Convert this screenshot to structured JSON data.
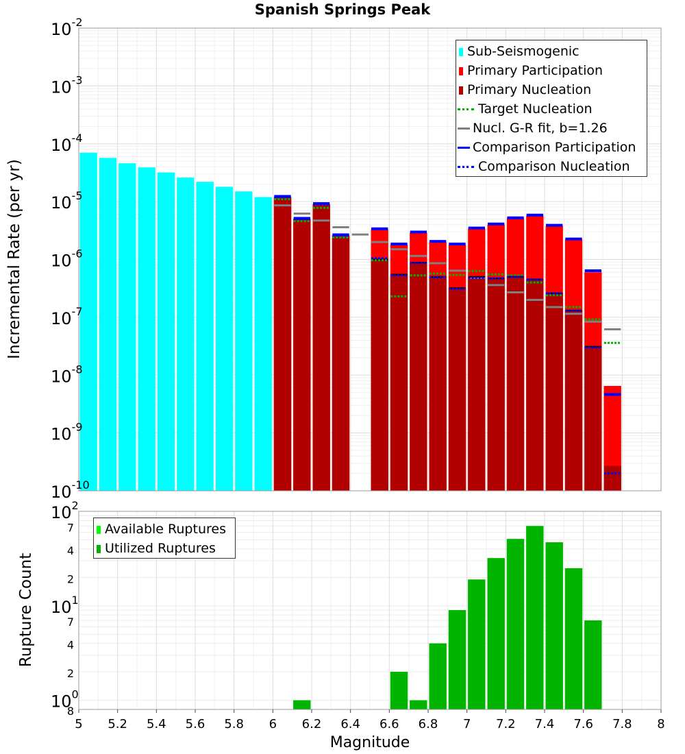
{
  "title": "Spanish Springs Peak",
  "colors": {
    "sub_seismogenic": "#00ffff",
    "primary_participation": "#ff0000",
    "primary_nucleation": "#b00000",
    "target_nucleation": "#00b400",
    "gr_fit": "#808080",
    "comparison": "#0000ff",
    "available": "#00ff00",
    "utilized": "#00b400"
  },
  "top_legend": [
    "Sub-Seismogenic",
    "Primary Participation",
    "Primary Nucleation",
    "Target Nucleation",
    "Nucl. G-R fit, b=1.26",
    "Comparison Participation",
    "Comparison Nucleation"
  ],
  "bottom_legend": [
    "Available Ruptures",
    "Utilized Ruptures"
  ],
  "chart_data": [
    {
      "type": "bar",
      "panel": "top",
      "yscale": "log",
      "ylabel": "Incremental Rate (per yr)",
      "xlim": [
        5,
        8
      ],
      "ylim": [
        1e-10,
        0.01
      ],
      "x_ticks": [
        "5",
        "5.2",
        "5.4",
        "5.6",
        "5.8",
        "6",
        "6.2",
        "6.4",
        "6.6",
        "6.8",
        "7",
        "7.2",
        "7.4",
        "7.6",
        "7.8",
        "8"
      ],
      "y_tick_exponents": [
        "-2",
        "-3",
        "-4",
        "-5",
        "-6",
        "-7",
        "-8",
        "-9",
        "-10"
      ],
      "sub_seismogenic": {
        "x": [
          5.05,
          5.15,
          5.25,
          5.35,
          5.45,
          5.55,
          5.65,
          5.75,
          5.85,
          5.95
        ],
        "values": [
          7e-05,
          5.7e-05,
          4.6e-05,
          3.9e-05,
          3.2e-05,
          2.6e-05,
          2.2e-05,
          1.8e-05,
          1.5e-05,
          1.2e-05
        ]
      },
      "x": [
        6.05,
        6.15,
        6.25,
        6.35,
        6.45,
        6.55,
        6.65,
        6.75,
        6.85,
        6.95,
        7.05,
        7.15,
        7.25,
        7.35,
        7.45,
        7.55,
        7.65,
        7.75
      ],
      "primary_participation": [
        1.2e-05,
        5e-06,
        9e-06,
        2.6e-06,
        null,
        3.3e-06,
        1.8e-06,
        2.9e-06,
        2e-06,
        1.8e-06,
        3.4e-06,
        4e-06,
        5.1e-06,
        5.7e-06,
        3.8e-06,
        2.2e-06,
        6e-07,
        6.5e-09
      ],
      "primary_nucleation": [
        1.2e-05,
        5e-06,
        9e-06,
        2.6e-06,
        null,
        1e-06,
        5.5e-07,
        8.8e-07,
        5e-07,
        3.2e-07,
        5e-07,
        4.7e-07,
        5e-07,
        4.5e-07,
        2.6e-07,
        1.3e-07,
        3.1e-08,
        2.7e-10
      ],
      "target_nucleation": [
        1.1e-05,
        4.6e-06,
        7.8e-06,
        2.4e-06,
        null,
        9.7e-07,
        2.3e-07,
        5.3e-07,
        5.7e-07,
        5.4e-07,
        6.3e-07,
        5.5e-07,
        5.3e-07,
        4e-07,
        2.4e-07,
        1.5e-07,
        9.2e-08,
        3.6e-08
      ],
      "gr_fit": [
        8.6e-06,
        6.2e-06,
        4.7e-06,
        3.6e-06,
        2.7e-06,
        2e-06,
        1.5e-06,
        1.15e-06,
        8.6e-07,
        6.4e-07,
        4.8e-07,
        3.6e-07,
        2.7e-07,
        2e-07,
        1.5e-07,
        1.15e-07,
        8.4e-08,
        6.2e-08
      ],
      "comparison_participation": [
        1.2e-05,
        5e-06,
        9e-06,
        2.6e-06,
        null,
        3.3e-06,
        1.8e-06,
        2.9e-06,
        2e-06,
        1.8e-06,
        3.4e-06,
        4e-06,
        5.1e-06,
        5.7e-06,
        3.8e-06,
        2.2e-06,
        6.2e-07,
        4.5e-09
      ],
      "comparison_nucleation": [
        1.2e-05,
        5e-06,
        9e-06,
        2.6e-06,
        null,
        1.05e-06,
        5.3e-07,
        8.7e-07,
        4.9e-07,
        3.1e-07,
        4.8e-07,
        4.7e-07,
        5e-07,
        4.5e-07,
        2.6e-07,
        1.3e-07,
        3e-08,
        2e-10
      ]
    },
    {
      "type": "bar",
      "panel": "bottom",
      "yscale": "log",
      "ylabel": "Rupture Count",
      "xlabel": "Magnitude",
      "xlim": [
        5,
        8
      ],
      "ylim": [
        0.8,
        100
      ],
      "x_ticks": [
        "5",
        "5.2",
        "5.4",
        "5.6",
        "5.8",
        "6",
        "6.2",
        "6.4",
        "6.6",
        "6.8",
        "7",
        "7.2",
        "7.4",
        "7.6",
        "7.8",
        "8"
      ],
      "y_tick_exponents": [
        "2",
        "1",
        "0"
      ],
      "y_minor_labels": [
        {
          "value": 70,
          "label": "7"
        },
        {
          "value": 40,
          "label": "4"
        },
        {
          "value": 20,
          "label": "2"
        },
        {
          "value": 7,
          "label": "7"
        },
        {
          "value": 4,
          "label": "4"
        },
        {
          "value": 2,
          "label": "2"
        },
        {
          "value": 0.8,
          "label": "8"
        }
      ],
      "x": [
        6.15,
        6.65,
        6.75,
        6.85,
        6.95,
        7.05,
        7.15,
        7.25,
        7.35,
        7.45,
        7.55,
        7.65
      ],
      "available": [
        1,
        2,
        1,
        4,
        9,
        19,
        32,
        51,
        70,
        47,
        25,
        7
      ],
      "utilized": [
        1,
        2,
        1,
        4,
        9,
        19,
        32,
        51,
        70,
        47,
        25,
        7
      ]
    }
  ]
}
